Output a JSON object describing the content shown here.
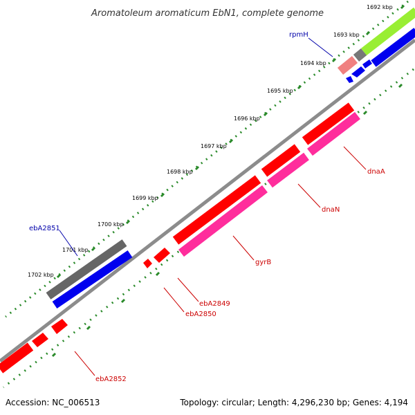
{
  "title": "Aromatoleum aromaticum EbN1, complete genome",
  "footer": {
    "accession": "Accession: NC_006513",
    "summary": "Topology: circular; Length: 4,296,230 bp; Genes: 4,194"
  },
  "colors": {
    "backbone": "#8c8c8c",
    "tick": "#2a8a2a",
    "cds_red": "#ff0000",
    "cds_pink": "#ff2d9c",
    "gene_blue": "#0000ee",
    "gene_gray": "#666666",
    "green_feature": "#99ee33",
    "salmon_feature": "#f08080",
    "label_red": "#cc0000",
    "label_blue": "#0000aa"
  },
  "ticks": [
    {
      "label": "1692 kbp"
    },
    {
      "label": "1693 kbp"
    },
    {
      "label": "1694 kbp"
    },
    {
      "label": "1695 kbp"
    },
    {
      "label": "1696 kbp"
    },
    {
      "label": "1697 kbp"
    },
    {
      "label": "1698 kbp"
    },
    {
      "label": "1699 kbp"
    },
    {
      "label": "1700 kbp"
    },
    {
      "label": "1701 kbp"
    },
    {
      "label": "1702 kbp"
    }
  ],
  "gene_labels": {
    "rpmH": "rpmH",
    "dnaA": "dnaA",
    "dnaN": "dnaN",
    "gyrB": "gyrB",
    "ebA2849": "ebA2849",
    "ebA2850": "ebA2850",
    "ebA2851": "ebA2851",
    "ebA2852": "ebA2852"
  }
}
